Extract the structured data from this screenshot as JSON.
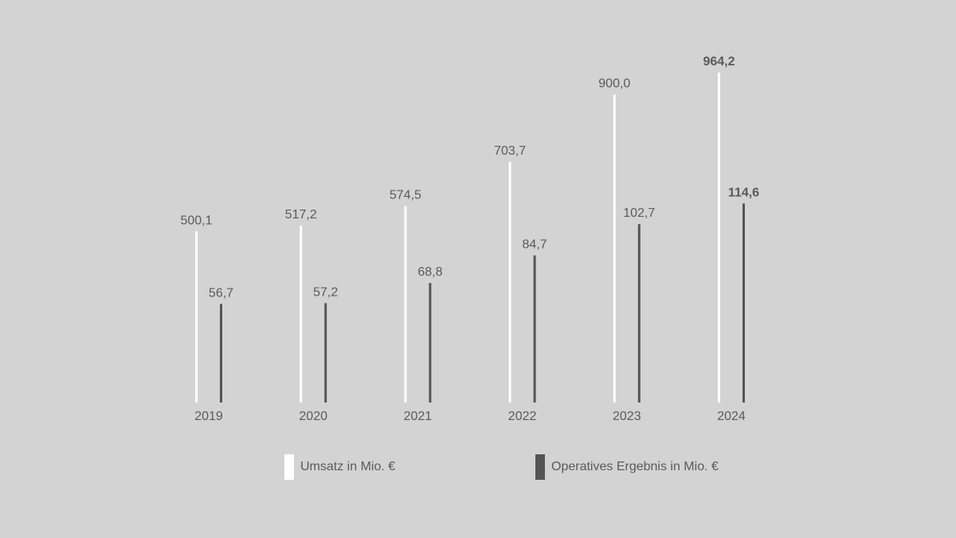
{
  "chart_data": {
    "type": "bar",
    "categories": [
      "2019",
      "2020",
      "2021",
      "2022",
      "2023",
      "2024"
    ],
    "series": [
      {
        "name": "Umsatz in Mio. €",
        "color": "#ffffff",
        "values": [
          500.1,
          517.2,
          574.5,
          703.7,
          900.0,
          964.2
        ],
        "labels": [
          "500,1",
          "517,2",
          "574,5",
          "703,7",
          "900,0",
          "964,2"
        ]
      },
      {
        "name": "Operatives Ergebnis in Mio. €",
        "color": "#555555",
        "values": [
          56.7,
          57.2,
          68.8,
          84.7,
          102.7,
          114.6
        ],
        "labels": [
          "56,7",
          "57,2",
          "68,8",
          "84,7",
          "102,7",
          "114,6"
        ]
      }
    ],
    "highlight_category": "2024",
    "background": "#d3d3d3",
    "label_color": "#5a5a5a"
  },
  "legend": {
    "items": [
      {
        "label": "Umsatz in Mio. €",
        "color": "#ffffff"
      },
      {
        "label": "Operatives Ergebnis in Mio. €",
        "color": "#555555"
      }
    ]
  }
}
